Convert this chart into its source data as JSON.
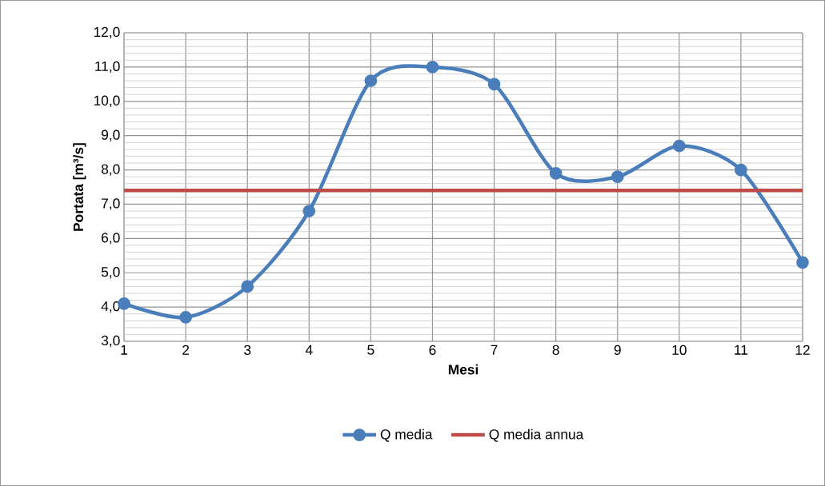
{
  "chart_data": {
    "type": "line",
    "xlabel": "Mesi",
    "ylabel": "Portata [m³/s]",
    "categories": [
      "1",
      "2",
      "3",
      "4",
      "5",
      "6",
      "7",
      "8",
      "9",
      "10",
      "11",
      "12"
    ],
    "series": [
      {
        "name": "Q media",
        "color": "#4a7ebb",
        "marker": "circle",
        "values": [
          4.1,
          3.7,
          4.6,
          6.8,
          10.6,
          11.0,
          10.5,
          7.9,
          7.8,
          8.7,
          8.0,
          5.3
        ]
      },
      {
        "name": "Q media annua",
        "color": "#be4b48",
        "marker": "none",
        "values": [
          7.4,
          7.4,
          7.4,
          7.4,
          7.4,
          7.4,
          7.4,
          7.4,
          7.4,
          7.4,
          7.4,
          7.4
        ]
      }
    ],
    "ylim": [
      3,
      12
    ],
    "yticks": [
      {
        "value": 3,
        "label": "3,0"
      },
      {
        "value": 4,
        "label": "4,0"
      },
      {
        "value": 5,
        "label": "5,0"
      },
      {
        "value": 6,
        "label": "6,0"
      },
      {
        "value": 7,
        "label": "7,0"
      },
      {
        "value": 8,
        "label": "8,0"
      },
      {
        "value": 9,
        "label": "9,0"
      },
      {
        "value": 10,
        "label": "10,0"
      },
      {
        "value": 11,
        "label": "11,0"
      },
      {
        "value": 12,
        "label": "12,0"
      }
    ],
    "grid": true,
    "legend": "bottom"
  }
}
